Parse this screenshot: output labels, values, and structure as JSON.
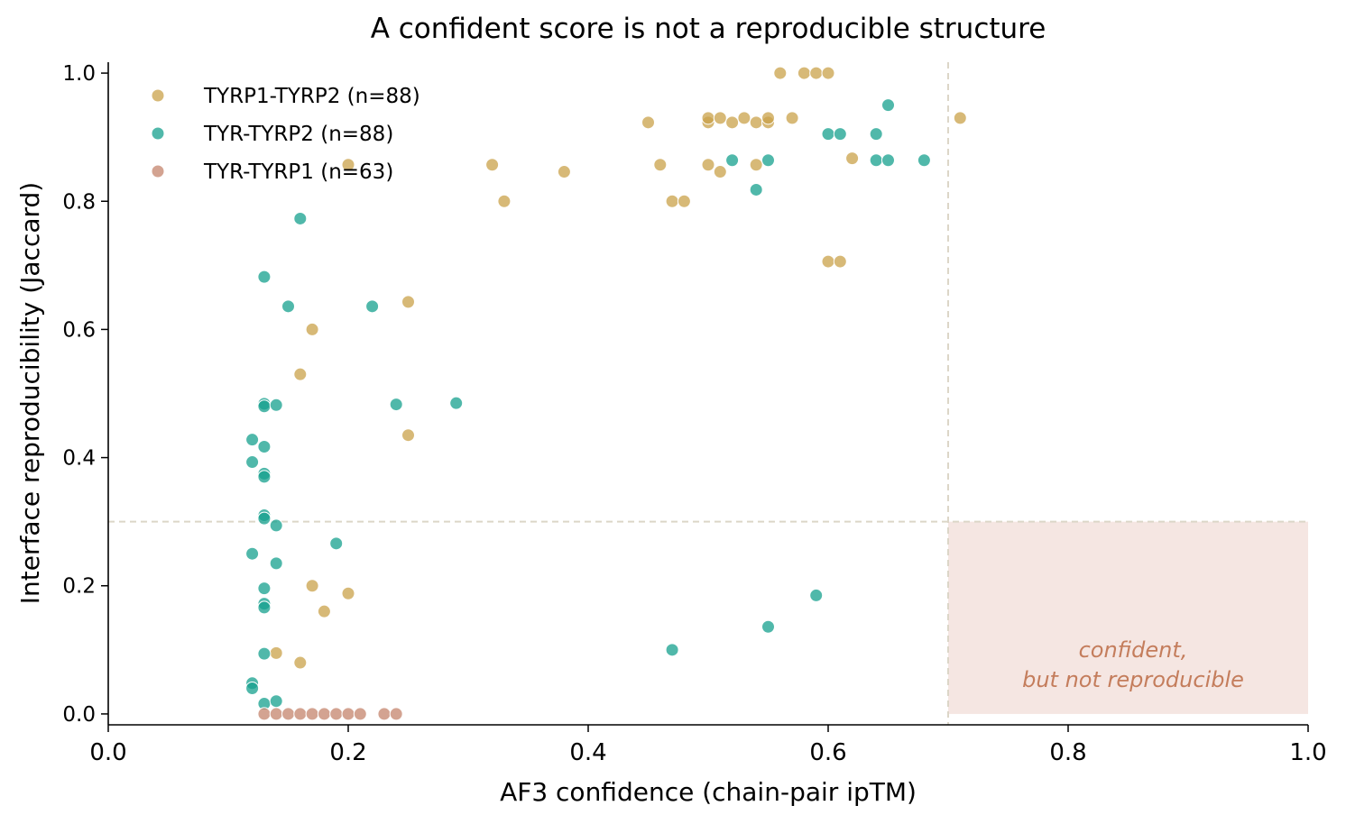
{
  "chart_data": {
    "type": "scatter",
    "title": "A confident score is not a reproducible structure",
    "xlabel": "AF3 confidence  (chain-pair ipTM)",
    "ylabel": "Interface reproducibility  (Jaccard)",
    "xlim": [
      0.0,
      1.0
    ],
    "ylim": [
      -0.017,
      1.017
    ],
    "xticks": [
      "0.0",
      "0.2",
      "0.4",
      "0.6",
      "0.8",
      "1.0"
    ],
    "yticks": [
      "0.0",
      "0.2",
      "0.4",
      "0.6",
      "0.8",
      "1.0"
    ],
    "grid": false,
    "legend_position": "top-left",
    "thresholds": {
      "x": 0.7,
      "y": 0.3
    },
    "annotation": {
      "line1": "confident,",
      "line2": "but not reproducible",
      "color": "#c47d5c",
      "region_color": "#f5e6e2"
    },
    "series": [
      {
        "name": "TYRP1-TYRP2 (n=88)",
        "color": "#c9a14a",
        "points": [
          [
            0.56,
            1.0
          ],
          [
            0.58,
            1.0
          ],
          [
            0.59,
            1.0
          ],
          [
            0.6,
            1.0
          ],
          [
            0.45,
            0.923
          ],
          [
            0.5,
            0.923
          ],
          [
            0.5,
            0.93
          ],
          [
            0.51,
            0.93
          ],
          [
            0.52,
            0.923
          ],
          [
            0.53,
            0.93
          ],
          [
            0.54,
            0.923
          ],
          [
            0.55,
            0.923
          ],
          [
            0.55,
            0.93
          ],
          [
            0.57,
            0.93
          ],
          [
            0.71,
            0.93
          ],
          [
            0.62,
            0.867
          ],
          [
            0.2,
            0.857
          ],
          [
            0.32,
            0.857
          ],
          [
            0.46,
            0.857
          ],
          [
            0.5,
            0.857
          ],
          [
            0.54,
            0.857
          ],
          [
            0.38,
            0.846
          ],
          [
            0.51,
            0.846
          ],
          [
            0.33,
            0.8
          ],
          [
            0.47,
            0.8
          ],
          [
            0.48,
            0.8
          ],
          [
            0.6,
            0.706
          ],
          [
            0.61,
            0.706
          ],
          [
            0.25,
            0.643
          ],
          [
            0.17,
            0.6
          ],
          [
            0.16,
            0.53
          ],
          [
            0.25,
            0.435
          ],
          [
            0.17,
            0.2
          ],
          [
            0.2,
            0.188
          ],
          [
            0.18,
            0.16
          ],
          [
            0.14,
            0.095
          ],
          [
            0.16,
            0.08
          ]
        ]
      },
      {
        "name": "TYR-TYRP2 (n=88)",
        "color": "#16a08e",
        "points": [
          [
            0.65,
            0.95
          ],
          [
            0.6,
            0.905
          ],
          [
            0.61,
            0.905
          ],
          [
            0.64,
            0.905
          ],
          [
            0.52,
            0.864
          ],
          [
            0.55,
            0.864
          ],
          [
            0.64,
            0.864
          ],
          [
            0.65,
            0.864
          ],
          [
            0.68,
            0.864
          ],
          [
            0.54,
            0.818
          ],
          [
            0.16,
            0.773
          ],
          [
            0.13,
            0.682
          ],
          [
            0.15,
            0.636
          ],
          [
            0.22,
            0.636
          ],
          [
            0.13,
            0.484
          ],
          [
            0.13,
            0.48
          ],
          [
            0.14,
            0.482
          ],
          [
            0.24,
            0.483
          ],
          [
            0.29,
            0.485
          ],
          [
            0.12,
            0.428
          ],
          [
            0.13,
            0.417
          ],
          [
            0.12,
            0.393
          ],
          [
            0.13,
            0.375
          ],
          [
            0.13,
            0.37
          ],
          [
            0.13,
            0.31
          ],
          [
            0.13,
            0.305
          ],
          [
            0.14,
            0.294
          ],
          [
            0.19,
            0.266
          ],
          [
            0.12,
            0.25
          ],
          [
            0.14,
            0.235
          ],
          [
            0.13,
            0.196
          ],
          [
            0.59,
            0.185
          ],
          [
            0.13,
            0.172
          ],
          [
            0.13,
            0.166
          ],
          [
            0.55,
            0.136
          ],
          [
            0.47,
            0.1
          ],
          [
            0.13,
            0.094
          ],
          [
            0.12,
            0.048
          ],
          [
            0.12,
            0.04
          ],
          [
            0.13,
            0.016
          ],
          [
            0.14,
            0.02
          ]
        ]
      },
      {
        "name": "TYR-TYRP1 (n=63)",
        "color": "#c4846c",
        "points": [
          [
            0.13,
            0.0
          ],
          [
            0.14,
            0.0
          ],
          [
            0.15,
            0.0
          ],
          [
            0.16,
            0.0
          ],
          [
            0.17,
            0.0
          ],
          [
            0.18,
            0.0
          ],
          [
            0.19,
            0.0
          ],
          [
            0.2,
            0.0
          ],
          [
            0.21,
            0.0
          ],
          [
            0.23,
            0.0
          ],
          [
            0.24,
            0.0
          ]
        ]
      }
    ]
  }
}
